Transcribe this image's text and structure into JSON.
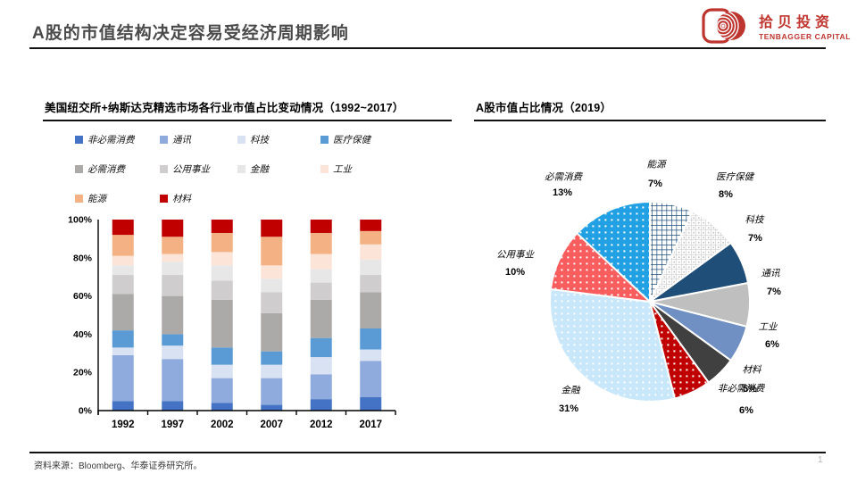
{
  "slide": {
    "title": "A股的市值结构决定容易受经济周期影响",
    "source_note": "资料来源：Bloomberg、华泰证券研究所。",
    "page_number": "1"
  },
  "logo": {
    "name_cn": "拾贝投资",
    "name_en": "TENBAGGER CAPITAL",
    "color": "#be342e"
  },
  "chart_data": [
    {
      "type": "bar",
      "subtype": "100%-stacked-column",
      "title": "美国纽交所+纳斯达克精选市场各行业市值占比变动情况（1992~2017）",
      "categories": [
        "1992",
        "1997",
        "2002",
        "2007",
        "2012",
        "2017"
      ],
      "series": [
        {
          "name": "非必需消费",
          "color": "#4472C4",
          "values": [
            5,
            5,
            4,
            3,
            6,
            7
          ]
        },
        {
          "name": "通讯",
          "color": "#8FAADC",
          "values": [
            24,
            22,
            13,
            14,
            13,
            19
          ]
        },
        {
          "name": "科技",
          "color": "#D9E2F3",
          "values": [
            4,
            7,
            7,
            7,
            9,
            6
          ]
        },
        {
          "name": "医疗保健",
          "color": "#5B9BD5",
          "values": [
            9,
            6,
            9,
            7,
            10,
            11
          ]
        },
        {
          "name": "必需消费",
          "color": "#ACA9A9",
          "values": [
            19,
            20,
            25,
            20,
            20,
            19
          ]
        },
        {
          "name": "公用事业",
          "color": "#CFCDCD",
          "values": [
            10,
            11,
            10,
            11,
            9,
            9
          ]
        },
        {
          "name": "金融",
          "color": "#E8E7E7",
          "values": [
            5,
            7,
            8,
            7,
            7,
            8
          ]
        },
        {
          "name": "工业",
          "color": "#FCE5D8",
          "values": [
            5,
            4,
            7,
            7,
            8,
            8
          ]
        },
        {
          "name": "能源",
          "color": "#F4B183",
          "values": [
            11,
            9,
            10,
            15,
            11,
            7
          ]
        },
        {
          "name": "材料",
          "color": "#C00000",
          "values": [
            8,
            9,
            7,
            9,
            7,
            6
          ]
        }
      ],
      "y_ticks": [
        "0%",
        "20%",
        "40%",
        "60%",
        "80%",
        "100%"
      ],
      "ylim": [
        0,
        100
      ],
      "grid": false,
      "legend_position": "top"
    },
    {
      "type": "pie",
      "title": "A股市值占比情况（2019）",
      "slices": [
        {
          "name": "能源",
          "pct": 7,
          "color": "#FFFFFF",
          "pattern": "grid",
          "pattern_color": "#1F4E79"
        },
        {
          "name": "医疗保健",
          "pct": 8,
          "color": "#FFFFFF",
          "pattern": "grid-dots",
          "pattern_color": "#C2C2C2"
        },
        {
          "name": "科技",
          "pct": 7,
          "color": "#1F4E79",
          "pattern": "none"
        },
        {
          "name": "通讯",
          "pct": 7,
          "color": "#BFBFBF",
          "pattern": "none"
        },
        {
          "name": "工业",
          "pct": 6,
          "color": "#7090C4",
          "pattern": "none"
        },
        {
          "name": "材料",
          "pct": 5,
          "color": "#404040",
          "pattern": "none"
        },
        {
          "name": "非必需消费",
          "pct": 6,
          "color": "#C00000",
          "pattern": "dots"
        },
        {
          "name": "金融",
          "pct": 31,
          "color": "#C9E7FA",
          "pattern": "dots"
        },
        {
          "name": "公用事业",
          "pct": 10,
          "color": "#F95D5D",
          "pattern": "dots"
        },
        {
          "name": "必需消费",
          "pct": 13,
          "color": "#21A0E4",
          "pattern": "dots"
        }
      ]
    }
  ]
}
